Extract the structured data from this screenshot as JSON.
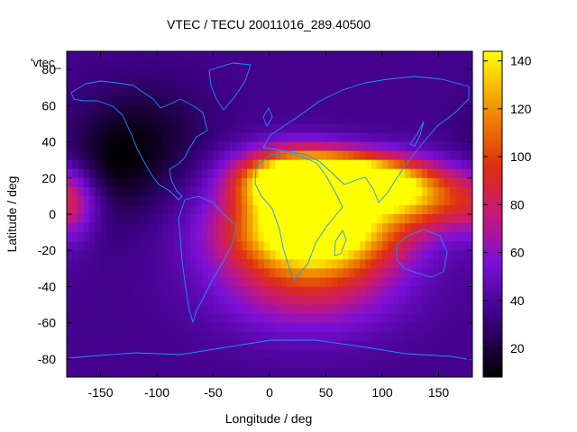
{
  "chart_data": {
    "type": "heatmap",
    "title": "VTEC / TECU 20011016_289.40500",
    "legend_label": "'vtec_",
    "xlabel": "Longitude / deg",
    "ylabel": "Latitude / deg",
    "xlim": [
      -180,
      180
    ],
    "ylim": [
      -90,
      90
    ],
    "x_ticks": [
      -150,
      -100,
      -50,
      0,
      50,
      100,
      150
    ],
    "y_ticks": [
      -80,
      -60,
      -40,
      -20,
      0,
      20,
      40,
      60,
      80
    ],
    "colorbar": {
      "range": [
        8,
        144
      ],
      "ticks": [
        20,
        40,
        60,
        80,
        100,
        120,
        140
      ],
      "palette": "black-purple-red-orange-yellow"
    },
    "coastlines_color": "#1e90ff",
    "field_model": {
      "background": 36,
      "features": [
        {
          "lon": 75,
          "lat": 18,
          "peak": 135,
          "sig_lon": 42,
          "sig_lat": 10
        },
        {
          "lon": 20,
          "lat": 18,
          "peak": 118,
          "sig_lon": 35,
          "sig_lat": 12
        },
        {
          "lon": 40,
          "lat": -8,
          "peak": 110,
          "sig_lon": 50,
          "sig_lat": 14
        },
        {
          "lon": 35,
          "lat": -30,
          "peak": 60,
          "sig_lon": 55,
          "sig_lat": 22
        },
        {
          "lon": 140,
          "lat": 8,
          "peak": 55,
          "sig_lon": 40,
          "sig_lat": 12
        },
        {
          "lon": -140,
          "lat": 20,
          "peak": -20,
          "sig_lon": 30,
          "sig_lat": 20
        },
        {
          "lon": -110,
          "lat": 45,
          "peak": -18,
          "sig_lon": 40,
          "sig_lat": 20
        },
        {
          "lon": -175,
          "lat": 5,
          "peak": 22,
          "sig_lon": 15,
          "sig_lat": 15
        }
      ]
    }
  }
}
